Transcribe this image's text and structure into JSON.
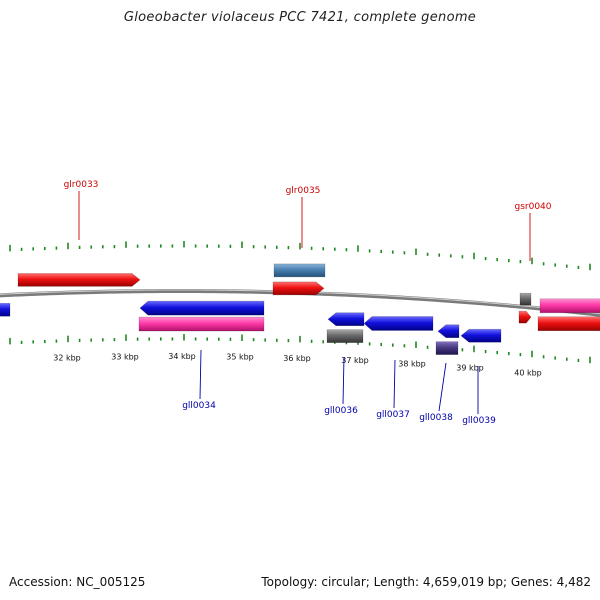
{
  "title": "Gloeobacter violaceus PCC 7421, complete genome",
  "footer": {
    "accession": "Accession: NC_005125",
    "summary": "Topology: circular; Length: 4,659,019 bp; Genes: 4,482"
  },
  "colors": {
    "forward_gene": "#ee1111",
    "reverse_gene": "#1111dd",
    "forward_label": "#cc0000",
    "reverse_label": "#0000aa",
    "ruler_tick": "#228822",
    "backbone": "#7a7a7a",
    "pink_feature": "#ff3aa8",
    "steel_feature": "#4a80b0",
    "grey_feature": "#6a6a6a",
    "violet_feature": "#4a3a80"
  },
  "ruler": {
    "labels": [
      "32 kbp",
      "33 kbp",
      "34 kbp",
      "35 kbp",
      "36 kbp",
      "37 kbp",
      "38 kbp",
      "39 kbp",
      "40 kbp"
    ]
  },
  "genes_forward": [
    "glr0033",
    "glr0035",
    "gsr0040"
  ],
  "genes_reverse": [
    "gll0034",
    "gll0036",
    "gll0037",
    "gll0038",
    "gll0039"
  ]
}
